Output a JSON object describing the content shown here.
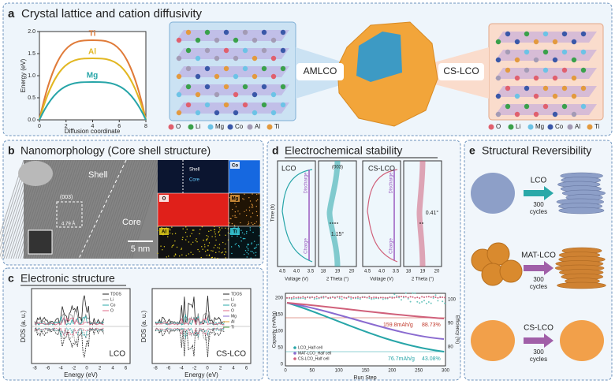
{
  "panels": {
    "a": {
      "label": "a",
      "title": "Crystal lattice and cation diffusivity",
      "energy_plot": {
        "y_label": "Energy (eV)",
        "x_label": "Diffusion coordinate",
        "yticks": [
          "0.0",
          "0.5",
          "1.0",
          "1.5",
          "2.0"
        ],
        "xticks": [
          "0",
          "2",
          "4",
          "6",
          "8"
        ],
        "curves": [
          "Ti",
          "Al",
          "Mg"
        ]
      },
      "left_label": "AMLCO",
      "right_label": "CS-LCO",
      "legend": [
        "O",
        "Li",
        "Mg",
        "Co",
        "Al",
        "Ti"
      ]
    },
    "b": {
      "label": "b",
      "title": "Nanomorphology (Core shell structure)",
      "shell": "Shell",
      "core": "Core",
      "plane": "(003)",
      "spacing": "4.79 Å",
      "scale": "5 nm",
      "maps": [
        "Co",
        "O",
        "Mg",
        "Al",
        "Ti"
      ]
    },
    "c": {
      "label": "c",
      "title": "Electronic structure",
      "y_label": "DOS (a. u.)",
      "x_label": "Energy (eV)",
      "xticks": [
        "-8",
        "-6",
        "-4",
        "-2",
        "0",
        "2",
        "4",
        "6"
      ],
      "plots": [
        {
          "name": "LCO",
          "legend": [
            "TDOS",
            "Li",
            "Co",
            "O"
          ]
        },
        {
          "name": "CS-LCO",
          "legend": [
            "TDOS",
            "Li",
            "Co",
            "O",
            "Mg",
            "Al",
            "Ti"
          ]
        }
      ]
    },
    "d": {
      "label": "d",
      "title": "Electrochemical stability",
      "time_label": "Time (h)",
      "voltage_label": "Voltage (V)",
      "theta_label": "2 Theta (°)",
      "voltage_ticks": [
        "4.5",
        "4.0",
        "3.5"
      ],
      "theta_ticks": [
        "18",
        "19",
        "20"
      ],
      "lco": "LCO",
      "cslco": "CS-LCO",
      "plane": "(003)",
      "discharge": "Discharge",
      "charge": "Charge",
      "shift_lco": "1.15°",
      "shift_cslco": "0.41°",
      "cycling": {
        "y_label": "Capacity (mAh/g)",
        "y2_label": "Efficiency (%)",
        "x_label": "Run Step",
        "xticks": [
          "0",
          "50",
          "100",
          "150",
          "200",
          "250",
          "300"
        ],
        "yticks": [
          "0",
          "50",
          "100",
          "150",
          "200"
        ],
        "y2ticks": [
          "80",
          "90",
          "100"
        ],
        "annotations": [
          "159.8mAh/g",
          "88.73%",
          "76.7mAh/g",
          "43.08%"
        ],
        "legend": [
          "LCO_Half cell",
          "MAT-LCO_Half cell",
          "CS-LCO_Half cell"
        ]
      }
    },
    "e": {
      "label": "e",
      "title": "Structural Reversibility",
      "rows": [
        {
          "name": "LCO",
          "cycles": [
            "300",
            "cycles"
          ]
        },
        {
          "name": "MAT-LCO",
          "cycles": [
            "300",
            "cycles"
          ]
        },
        {
          "name": "CS-LCO",
          "cycles": [
            "300",
            "cycles"
          ]
        }
      ]
    }
  }
}
